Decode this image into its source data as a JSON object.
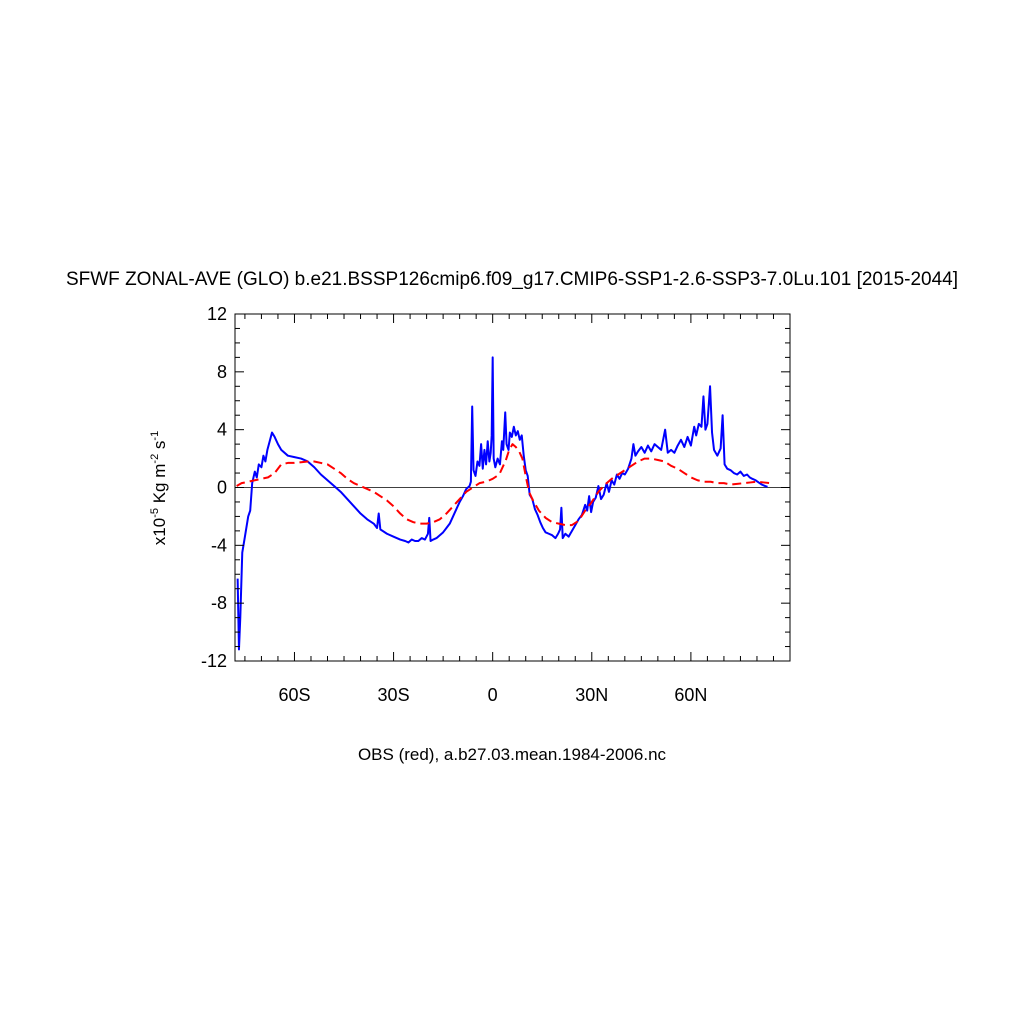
{
  "chart_data": {
    "type": "line",
    "title": "SFWF ZONAL-AVE (GLO) b.e21.BSSP126cmip6.f09_g17.CMIP6-SSP1-2.6-SSP3-7.0Lu.101 [2015-2044]",
    "xlabel": "OBS (red), a.b27.03.mean.1984-2006.nc",
    "ylabel": {
      "prefix": "x10",
      "exp1": "-5",
      "mid": " Kg m",
      "exp2": "-2",
      "mid2": " s",
      "exp3": "-1"
    },
    "xlim": [
      -78,
      90
    ],
    "ylim": [
      -12,
      12
    ],
    "grid": false,
    "zero_line": true,
    "x_ticks": [
      {
        "value": -60,
        "label": "60S"
      },
      {
        "value": -30,
        "label": "30S"
      },
      {
        "value": 0,
        "label": "0"
      },
      {
        "value": 30,
        "label": "30N"
      },
      {
        "value": 60,
        "label": "60N"
      }
    ],
    "y_ticks": [
      {
        "value": 12,
        "label": "12"
      },
      {
        "value": 8,
        "label": "8"
      },
      {
        "value": 4,
        "label": "4"
      },
      {
        "value": 0,
        "label": "0"
      },
      {
        "value": -4,
        "label": "-4"
      },
      {
        "value": -8,
        "label": "-8"
      },
      {
        "value": -12,
        "label": "-12"
      }
    ],
    "series": [
      {
        "color": "#0000ff",
        "dash": "solid",
        "points": [
          [
            -77.2,
            -6.3
          ],
          [
            -76.8,
            -11.2
          ],
          [
            -76.4,
            -9.0
          ],
          [
            -75.8,
            -4.5
          ],
          [
            -75.0,
            -3.4
          ],
          [
            -74.0,
            -2.0
          ],
          [
            -73.4,
            -1.6
          ],
          [
            -72.8,
            0.3
          ],
          [
            -72.0,
            1.1
          ],
          [
            -71.4,
            0.7
          ],
          [
            -70.8,
            1.6
          ],
          [
            -70.0,
            1.4
          ],
          [
            -69.4,
            2.2
          ],
          [
            -68.8,
            1.8
          ],
          [
            -68.2,
            2.6
          ],
          [
            -67.5,
            3.2
          ],
          [
            -66.8,
            3.8
          ],
          [
            -66.0,
            3.5
          ],
          [
            -65.0,
            3.0
          ],
          [
            -64.0,
            2.6
          ],
          [
            -62.0,
            2.2
          ],
          [
            -60.0,
            2.1
          ],
          [
            -58.0,
            2.0
          ],
          [
            -56.0,
            1.8
          ],
          [
            -54.0,
            1.4
          ],
          [
            -52.0,
            0.9
          ],
          [
            -50.0,
            0.5
          ],
          [
            -48.0,
            0.1
          ],
          [
            -46.0,
            -0.3
          ],
          [
            -44.0,
            -0.8
          ],
          [
            -42.0,
            -1.3
          ],
          [
            -40.0,
            -1.8
          ],
          [
            -38.0,
            -2.2
          ],
          [
            -36.0,
            -2.5
          ],
          [
            -35.0,
            -2.8
          ],
          [
            -34.5,
            -1.8
          ],
          [
            -34.0,
            -2.9
          ],
          [
            -32.0,
            -3.2
          ],
          [
            -30.0,
            -3.4
          ],
          [
            -28.0,
            -3.6
          ],
          [
            -26.5,
            -3.7
          ],
          [
            -25.5,
            -3.8
          ],
          [
            -24.5,
            -3.6
          ],
          [
            -23.5,
            -3.7
          ],
          [
            -22.5,
            -3.7
          ],
          [
            -21.5,
            -3.5
          ],
          [
            -20.5,
            -3.6
          ],
          [
            -19.6,
            -3.2
          ],
          [
            -19.2,
            -2.1
          ],
          [
            -18.8,
            -3.7
          ],
          [
            -18.0,
            -3.6
          ],
          [
            -17.0,
            -3.5
          ],
          [
            -16.0,
            -3.3
          ],
          [
            -15.0,
            -3.1
          ],
          [
            -14.0,
            -2.8
          ],
          [
            -13.0,
            -2.5
          ],
          [
            -12.0,
            -2.0
          ],
          [
            -11.0,
            -1.5
          ],
          [
            -10.0,
            -1.0
          ],
          [
            -9.0,
            -0.6
          ],
          [
            -8.0,
            -0.1
          ],
          [
            -7.0,
            0.1
          ],
          [
            -6.6,
            0.4
          ],
          [
            -6.2,
            5.6
          ],
          [
            -5.8,
            1.2
          ],
          [
            -5.2,
            0.8
          ],
          [
            -4.6,
            1.8
          ],
          [
            -4.0,
            1.5
          ],
          [
            -3.5,
            3.0
          ],
          [
            -3.0,
            1.3
          ],
          [
            -2.5,
            2.6
          ],
          [
            -2.0,
            1.6
          ],
          [
            -1.5,
            3.2
          ],
          [
            -1.0,
            1.8
          ],
          [
            -0.6,
            2.4
          ],
          [
            -0.3,
            3.6
          ],
          [
            0.0,
            9.0
          ],
          [
            0.3,
            2.0
          ],
          [
            0.8,
            1.4
          ],
          [
            1.5,
            2.0
          ],
          [
            2.2,
            1.6
          ],
          [
            2.8,
            3.2
          ],
          [
            3.2,
            2.6
          ],
          [
            3.8,
            5.2
          ],
          [
            4.2,
            3.0
          ],
          [
            4.8,
            2.6
          ],
          [
            5.2,
            3.8
          ],
          [
            5.8,
            3.5
          ],
          [
            6.4,
            4.2
          ],
          [
            7.0,
            3.6
          ],
          [
            7.6,
            3.9
          ],
          [
            8.2,
            3.3
          ],
          [
            8.8,
            3.6
          ],
          [
            9.4,
            2.2
          ],
          [
            10.0,
            1.2
          ],
          [
            10.6,
            0.8
          ],
          [
            11.2,
            -0.5
          ],
          [
            12.0,
            -0.8
          ],
          [
            12.8,
            -1.5
          ],
          [
            13.6,
            -1.9
          ],
          [
            14.4,
            -2.4
          ],
          [
            15.2,
            -2.8
          ],
          [
            16.0,
            -3.1
          ],
          [
            17.0,
            -3.2
          ],
          [
            18.0,
            -3.3
          ],
          [
            19.0,
            -3.5
          ],
          [
            19.8,
            -3.2
          ],
          [
            20.4,
            -2.9
          ],
          [
            20.8,
            -1.4
          ],
          [
            21.2,
            -3.5
          ],
          [
            22.0,
            -3.2
          ],
          [
            23.0,
            -3.4
          ],
          [
            24.0,
            -3.0
          ],
          [
            25.0,
            -2.6
          ],
          [
            26.0,
            -2.2
          ],
          [
            27.0,
            -1.9
          ],
          [
            28.0,
            -1.2
          ],
          [
            28.6,
            -1.6
          ],
          [
            29.2,
            -0.6
          ],
          [
            29.8,
            -1.7
          ],
          [
            30.4,
            -1.0
          ],
          [
            31.2,
            -0.7
          ],
          [
            32.0,
            0.1
          ],
          [
            32.8,
            -0.8
          ],
          [
            33.6,
            -0.5
          ],
          [
            34.5,
            0.3
          ],
          [
            35.2,
            -0.3
          ],
          [
            36.0,
            0.5
          ],
          [
            36.8,
            0.2
          ],
          [
            37.6,
            0.9
          ],
          [
            38.4,
            0.6
          ],
          [
            39.2,
            1.0
          ],
          [
            40.0,
            0.9
          ],
          [
            41.0,
            1.3
          ],
          [
            42.0,
            2.0
          ],
          [
            42.6,
            3.0
          ],
          [
            43.2,
            2.2
          ],
          [
            44.0,
            2.5
          ],
          [
            45.0,
            2.8
          ],
          [
            46.0,
            2.4
          ],
          [
            47.0,
            2.9
          ],
          [
            48.0,
            2.5
          ],
          [
            49.0,
            3.0
          ],
          [
            50.0,
            2.8
          ],
          [
            51.0,
            2.6
          ],
          [
            52.2,
            4.0
          ],
          [
            53.0,
            2.4
          ],
          [
            54.0,
            2.6
          ],
          [
            55.0,
            2.4
          ],
          [
            56.0,
            2.9
          ],
          [
            57.0,
            3.3
          ],
          [
            58.0,
            2.8
          ],
          [
            59.0,
            3.5
          ],
          [
            60.0,
            2.9
          ],
          [
            61.0,
            4.2
          ],
          [
            61.6,
            3.6
          ],
          [
            62.4,
            4.4
          ],
          [
            63.2,
            4.2
          ],
          [
            63.8,
            6.3
          ],
          [
            64.4,
            4.0
          ],
          [
            65.0,
            4.4
          ],
          [
            65.8,
            7.0
          ],
          [
            66.4,
            3.8
          ],
          [
            67.0,
            2.6
          ],
          [
            68.0,
            2.2
          ],
          [
            69.0,
            2.7
          ],
          [
            69.6,
            5.0
          ],
          [
            70.2,
            1.6
          ],
          [
            71.0,
            1.3
          ],
          [
            72.0,
            1.2
          ],
          [
            73.0,
            1.0
          ],
          [
            74.0,
            0.9
          ],
          [
            75.0,
            1.1
          ],
          [
            76.0,
            0.8
          ],
          [
            77.0,
            0.9
          ],
          [
            77.8,
            0.7
          ],
          [
            78.6,
            0.6
          ],
          [
            79.6,
            0.5
          ],
          [
            80.5,
            0.35
          ],
          [
            81.5,
            0.2
          ],
          [
            82.5,
            0.1
          ],
          [
            83.2,
            0.05
          ]
        ]
      },
      {
        "color": "#ff0000",
        "dash": "dashed",
        "points": [
          [
            -77.5,
            0.1
          ],
          [
            -76.0,
            0.3
          ],
          [
            -74.0,
            0.4
          ],
          [
            -72.0,
            0.5
          ],
          [
            -70.0,
            0.6
          ],
          [
            -68.0,
            0.7
          ],
          [
            -66.0,
            1.0
          ],
          [
            -64.0,
            1.6
          ],
          [
            -62.0,
            1.7
          ],
          [
            -60.0,
            1.7
          ],
          [
            -58.0,
            1.75
          ],
          [
            -56.0,
            1.8
          ],
          [
            -54.0,
            1.8
          ],
          [
            -52.0,
            1.7
          ],
          [
            -50.0,
            1.6
          ],
          [
            -48.0,
            1.3
          ],
          [
            -46.0,
            1.0
          ],
          [
            -44.0,
            0.6
          ],
          [
            -42.0,
            0.3
          ],
          [
            -40.0,
            0.1
          ],
          [
            -38.0,
            -0.1
          ],
          [
            -36.0,
            -0.3
          ],
          [
            -34.0,
            -0.6
          ],
          [
            -32.0,
            -0.9
          ],
          [
            -30.0,
            -1.3
          ],
          [
            -28.0,
            -1.8
          ],
          [
            -26.0,
            -2.2
          ],
          [
            -24.0,
            -2.4
          ],
          [
            -22.0,
            -2.5
          ],
          [
            -20.0,
            -2.5
          ],
          [
            -18.0,
            -2.4
          ],
          [
            -16.0,
            -2.2
          ],
          [
            -14.0,
            -1.8
          ],
          [
            -12.0,
            -1.3
          ],
          [
            -10.0,
            -0.8
          ],
          [
            -8.0,
            -0.3
          ],
          [
            -6.0,
            0.0
          ],
          [
            -4.0,
            0.3
          ],
          [
            -2.0,
            0.4
          ],
          [
            0.0,
            0.6
          ],
          [
            2.0,
            0.9
          ],
          [
            4.0,
            1.9
          ],
          [
            5.0,
            2.6
          ],
          [
            6.0,
            3.0
          ],
          [
            7.0,
            2.8
          ],
          [
            8.0,
            2.5
          ],
          [
            9.0,
            2.0
          ],
          [
            10.0,
            0.8
          ],
          [
            11.0,
            -0.3
          ],
          [
            12.0,
            -0.8
          ],
          [
            14.0,
            -1.6
          ],
          [
            16.0,
            -2.1
          ],
          [
            18.0,
            -2.4
          ],
          [
            20.0,
            -2.5
          ],
          [
            22.0,
            -2.6
          ],
          [
            24.0,
            -2.6
          ],
          [
            26.0,
            -2.3
          ],
          [
            28.0,
            -1.6
          ],
          [
            30.0,
            -1.0
          ],
          [
            32.0,
            -0.3
          ],
          [
            34.0,
            0.2
          ],
          [
            36.0,
            0.6
          ],
          [
            38.0,
            0.9
          ],
          [
            40.0,
            1.2
          ],
          [
            42.0,
            1.5
          ],
          [
            44.0,
            1.8
          ],
          [
            46.0,
            2.0
          ],
          [
            48.0,
            2.0
          ],
          [
            50.0,
            1.9
          ],
          [
            52.0,
            1.8
          ],
          [
            54.0,
            1.5
          ],
          [
            56.0,
            1.3
          ],
          [
            58.0,
            1.0
          ],
          [
            60.0,
            0.7
          ],
          [
            62.0,
            0.5
          ],
          [
            64.0,
            0.4
          ],
          [
            66.0,
            0.4
          ],
          [
            68.0,
            0.3
          ],
          [
            70.0,
            0.3
          ],
          [
            72.0,
            0.2
          ],
          [
            74.0,
            0.25
          ],
          [
            76.0,
            0.3
          ],
          [
            78.0,
            0.35
          ],
          [
            80.0,
            0.4
          ],
          [
            82.0,
            0.35
          ],
          [
            84.0,
            0.3
          ],
          [
            85.0,
            0.25
          ]
        ]
      }
    ]
  }
}
